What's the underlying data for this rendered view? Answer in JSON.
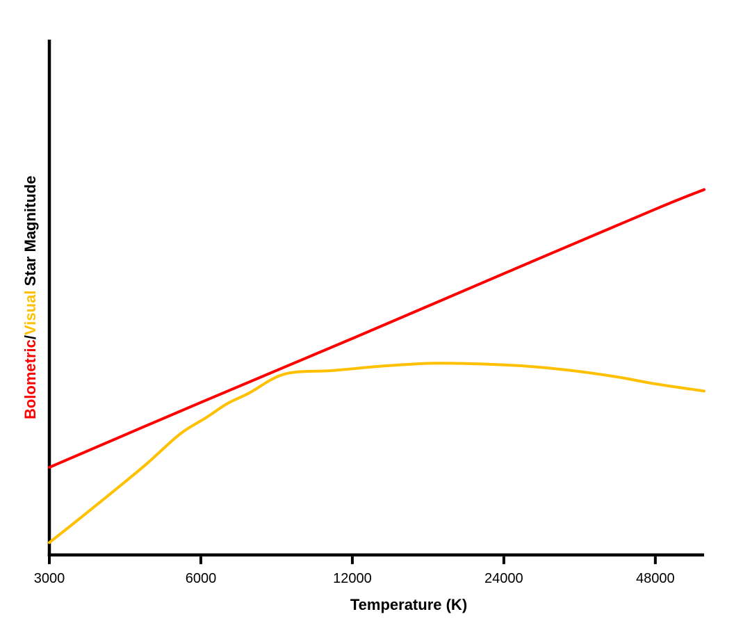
{
  "colors": {
    "bolometric_red": "#FF0000",
    "visual_gold": "#FFC000",
    "axis_black": "#000000",
    "background": "#FFFFFF"
  },
  "y_axis_label": {
    "part_bolometric": "Bolometric",
    "part_slash": "/",
    "part_visual": "Visual",
    "part_rest": " Star Magnitude"
  },
  "x_axis_title": "Temperature (K)",
  "chart_data": {
    "type": "line",
    "title": "",
    "xlabel": "Temperature (K)",
    "ylabel": "Bolometric/Visual Star Magnitude",
    "x_scale": "log",
    "x_range": [
      3000,
      60000
    ],
    "x_ticks": [
      3000,
      6000,
      12000,
      24000,
      48000
    ],
    "y_axis_numeric_labels_shown": false,
    "y_units": "relative magnitude, normalized 0-1 of drawn axis height (no numeric y scale shown)",
    "grid": false,
    "legend": "none (series identified by colored words in y-axis label)",
    "series": [
      {
        "name": "Bolometric",
        "color": "#FF0000",
        "shape": "straight rising line versus log temperature",
        "points": [
          [
            3000,
            0.17
          ],
          [
            6000,
            0.296
          ],
          [
            12000,
            0.42
          ],
          [
            24000,
            0.546
          ],
          [
            48000,
            0.671
          ],
          [
            60000,
            0.709
          ]
        ]
      },
      {
        "name": "Visual",
        "color": "#FFC000",
        "shape": "rises steeply, tangent to bolometric line near 8000-9000 K, peaks near 17000 K, then gently declines",
        "points": [
          [
            3000,
            0.024
          ],
          [
            3390,
            0.065
          ],
          [
            3970,
            0.119
          ],
          [
            4660,
            0.175
          ],
          [
            5460,
            0.235
          ],
          [
            6160,
            0.267
          ],
          [
            6780,
            0.294
          ],
          [
            7480,
            0.314
          ],
          [
            8800,
            0.351
          ],
          [
            11000,
            0.358
          ],
          [
            14000,
            0.367
          ],
          [
            17300,
            0.372
          ],
          [
            21000,
            0.371
          ],
          [
            26000,
            0.367
          ],
          [
            32000,
            0.359
          ],
          [
            40000,
            0.346
          ],
          [
            48000,
            0.332
          ],
          [
            60000,
            0.318
          ]
        ]
      }
    ]
  }
}
